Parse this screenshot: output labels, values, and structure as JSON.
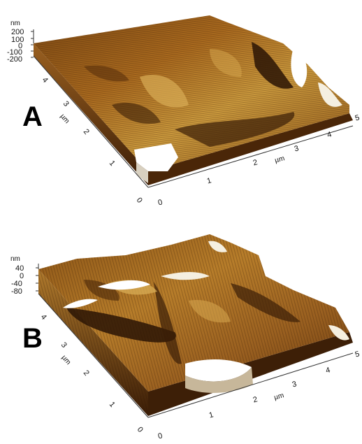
{
  "panels": [
    {
      "letter": "A",
      "z_unit": "nm",
      "z_ticks": [
        "200",
        "100",
        "0",
        "-100",
        "-200"
      ],
      "y_unit": "µm",
      "y_ticks": [
        "0",
        "1",
        "2",
        "3",
        "4"
      ],
      "x_unit": "µm",
      "x_ticks": [
        "0",
        "1",
        "2",
        "3",
        "4",
        "5"
      ]
    },
    {
      "letter": "B",
      "z_unit": "nm",
      "z_ticks": [
        "40",
        "0",
        "-40",
        "-80"
      ],
      "y_unit": "µm",
      "y_ticks": [
        "0",
        "1",
        "2",
        "3",
        "4"
      ],
      "x_unit": "µm",
      "x_ticks": [
        "0",
        "1",
        "2",
        "3",
        "4",
        "5"
      ]
    }
  ],
  "colors": {
    "dark": "#2a1405",
    "mid": "#8a5316",
    "light": "#c99a3c",
    "highlight": "#f3e6c4",
    "peak": "#ffffff"
  }
}
